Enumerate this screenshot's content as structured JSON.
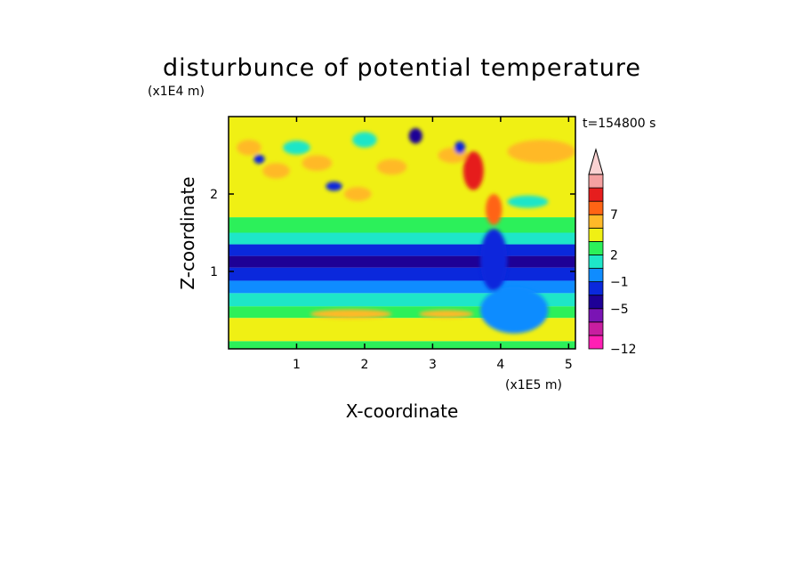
{
  "chart_data": {
    "type": "heatmap",
    "title": "disturbunce of potential temperature",
    "xlabel": "X-coordinate",
    "ylabel": "Z-coordinate",
    "x_scale_label": "(x1E5 m)",
    "y_scale_label": "(x1E4 m)",
    "time_label": "t=154800 s",
    "xlim": [
      0,
      5.1
    ],
    "ylim": [
      0,
      3.0
    ],
    "x_ticks": [
      {
        "value": 1,
        "label": "1"
      },
      {
        "value": 2,
        "label": "2"
      },
      {
        "value": 3,
        "label": "3"
      },
      {
        "value": 4,
        "label": "4"
      },
      {
        "value": 5,
        "label": "5"
      }
    ],
    "y_ticks": [
      {
        "value": 1,
        "label": "1"
      },
      {
        "value": 2,
        "label": "2"
      }
    ],
    "colorbar": {
      "extend": "max",
      "levels": [
        "-12",
        "",
        "",
        "-5",
        "",
        "-1",
        "",
        "2",
        "",
        "",
        "7",
        "",
        ""
      ],
      "colors": [
        "#ff1fb4",
        "#c81ea0",
        "#7a14b4",
        "#1e0096",
        "#0a28dc",
        "#0f8cff",
        "#1ee6c8",
        "#2cf05a",
        "#f0f014",
        "#ffb928",
        "#ff6414",
        "#e61e1e",
        "#f5a0a0",
        "#fad2d2"
      ]
    },
    "bands": [
      {
        "z_from": 0.0,
        "z_to": 0.1,
        "color": "#2cf05a"
      },
      {
        "z_from": 0.1,
        "z_to": 0.4,
        "color": "#f0f014"
      },
      {
        "z_from": 0.4,
        "z_to": 0.55,
        "color": "#2cf05a"
      },
      {
        "z_from": 0.55,
        "z_to": 0.72,
        "color": "#1ee6c8"
      },
      {
        "z_from": 0.72,
        "z_to": 0.88,
        "color": "#0f8cff"
      },
      {
        "z_from": 0.88,
        "z_to": 1.05,
        "color": "#0a28dc"
      },
      {
        "z_from": 1.05,
        "z_to": 1.2,
        "color": "#1e0096"
      },
      {
        "z_from": 1.2,
        "z_to": 1.35,
        "color": "#0a28dc"
      },
      {
        "z_from": 1.35,
        "z_to": 1.5,
        "color": "#1ee6c8"
      },
      {
        "z_from": 1.5,
        "z_to": 1.7,
        "color": "#2cf05a"
      },
      {
        "z_from": 1.7,
        "z_to": 3.0,
        "color": "#f0f014"
      }
    ],
    "features": [
      {
        "x": 0.3,
        "z": 2.6,
        "rx": 0.18,
        "rz": 0.1,
        "color": "#ffb928"
      },
      {
        "x": 0.45,
        "z": 2.45,
        "rx": 0.08,
        "rz": 0.06,
        "color": "#0a28dc"
      },
      {
        "x": 0.7,
        "z": 2.3,
        "rx": 0.2,
        "rz": 0.1,
        "color": "#ffb928"
      },
      {
        "x": 1.0,
        "z": 2.6,
        "rx": 0.2,
        "rz": 0.09,
        "color": "#1ee6c8"
      },
      {
        "x": 1.3,
        "z": 2.4,
        "rx": 0.22,
        "rz": 0.1,
        "color": "#ffb928"
      },
      {
        "x": 1.55,
        "z": 2.1,
        "rx": 0.12,
        "rz": 0.06,
        "color": "#0a28dc"
      },
      {
        "x": 1.9,
        "z": 2.0,
        "rx": 0.2,
        "rz": 0.09,
        "color": "#ffb928"
      },
      {
        "x": 2.0,
        "z": 2.7,
        "rx": 0.18,
        "rz": 0.1,
        "color": "#1ee6c8"
      },
      {
        "x": 2.4,
        "z": 2.35,
        "rx": 0.22,
        "rz": 0.1,
        "color": "#ffb928"
      },
      {
        "x": 2.75,
        "z": 2.75,
        "rx": 0.1,
        "rz": 0.1,
        "color": "#1e0096"
      },
      {
        "x": 3.3,
        "z": 2.5,
        "rx": 0.22,
        "rz": 0.1,
        "color": "#ffb928"
      },
      {
        "x": 3.4,
        "z": 2.6,
        "rx": 0.08,
        "rz": 0.08,
        "color": "#0a28dc"
      },
      {
        "x": 3.6,
        "z": 2.3,
        "rx": 0.15,
        "rz": 0.25,
        "color": "#e61e1e"
      },
      {
        "x": 3.9,
        "z": 1.8,
        "rx": 0.12,
        "rz": 0.2,
        "color": "#ff6414"
      },
      {
        "x": 4.6,
        "z": 2.55,
        "rx": 0.5,
        "rz": 0.15,
        "color": "#ffb928"
      },
      {
        "x": 4.4,
        "z": 1.9,
        "rx": 0.3,
        "rz": 0.08,
        "color": "#1ee6c8"
      },
      {
        "x": 1.8,
        "z": 0.45,
        "rx": 0.6,
        "rz": 0.06,
        "color": "#ffb928"
      },
      {
        "x": 3.2,
        "z": 0.45,
        "rx": 0.4,
        "rz": 0.05,
        "color": "#ffb928"
      },
      {
        "x": 4.2,
        "z": 0.5,
        "rx": 0.5,
        "rz": 0.3,
        "color": "#0f8cff"
      },
      {
        "x": 3.9,
        "z": 1.15,
        "rx": 0.2,
        "rz": 0.4,
        "color": "#0a28dc"
      }
    ]
  }
}
